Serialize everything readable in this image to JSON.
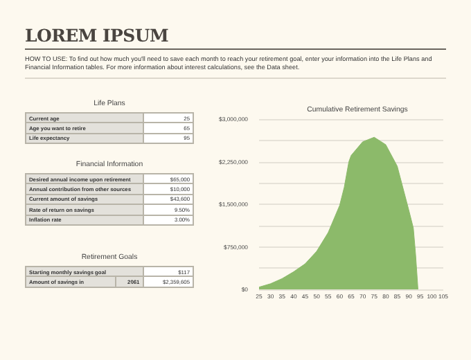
{
  "chart_data": [
    {
      "type": "other",
      "title": "LOREM IPSUM",
      "subtitle": "HOW TO USE: To find out how much you'll need to save each month to reach your retirement goal, enter your information into the Life Plans and Financial Information tables. For more information about interest calculations, see the Data sheet."
    },
    {
      "type": "other",
      "title": "Life Plans",
      "cell_labels": [
        [
          "Current age",
          "25"
        ],
        [
          "Age you want to retire",
          "65"
        ],
        [
          "Life expectancy",
          "95"
        ]
      ]
    },
    {
      "type": "other",
      "title": "Financial Information",
      "cell_labels": [
        [
          "Desired annual income upon retirement",
          "$65,000"
        ],
        [
          "Annual contribution from other sources",
          "$10,000"
        ],
        [
          "Current amount of savings",
          "$43,600"
        ],
        [
          "Rate of return on savings",
          "9.50%"
        ],
        [
          "Inflation rate",
          "3.00%"
        ]
      ]
    },
    {
      "type": "other",
      "title": "Retirement Goals",
      "cell_labels": [
        [
          "Starting monthly savings goal",
          "$117"
        ],
        [
          "Amount of savings in",
          "2061",
          "$2,359,605"
        ]
      ]
    },
    {
      "type": "area",
      "title": "Cumulative Retirement Savings",
      "x": [
        25,
        30,
        35,
        40,
        45,
        50,
        55,
        60,
        62,
        64,
        65,
        70,
        75,
        80,
        85,
        90,
        92,
        93,
        94
      ],
      "series": [
        {
          "color": "#8cba6a",
          "values": [
            40000,
            100000,
            190000,
            310000,
            450000,
            670000,
            1000000,
            1480000,
            1800000,
            2250000,
            2360000,
            2600000,
            2680000,
            2550000,
            2170000,
            1400000,
            1080000,
            600000,
            0
          ]
        }
      ],
      "xlim": [
        25,
        105
      ],
      "xticks": [
        25,
        30,
        35,
        40,
        45,
        50,
        55,
        60,
        65,
        70,
        75,
        80,
        85,
        90,
        95,
        100,
        105
      ],
      "ylim": [
        0,
        3000000
      ],
      "yticks": [
        {
          "value": 0,
          "label": "$0"
        },
        {
          "value": 375000,
          "label": null
        },
        {
          "value": 750000,
          "label": "$750,000"
        },
        {
          "value": 1125000,
          "label": null
        },
        {
          "value": 1500000,
          "label": "$1,500,000"
        },
        {
          "value": 1875000,
          "label": null
        },
        {
          "value": 2250000,
          "label": "$2,250,000"
        },
        {
          "value": 2625000,
          "label": null
        },
        {
          "value": 3000000,
          "label": "$3,000,000"
        }
      ],
      "grid": "y"
    }
  ]
}
